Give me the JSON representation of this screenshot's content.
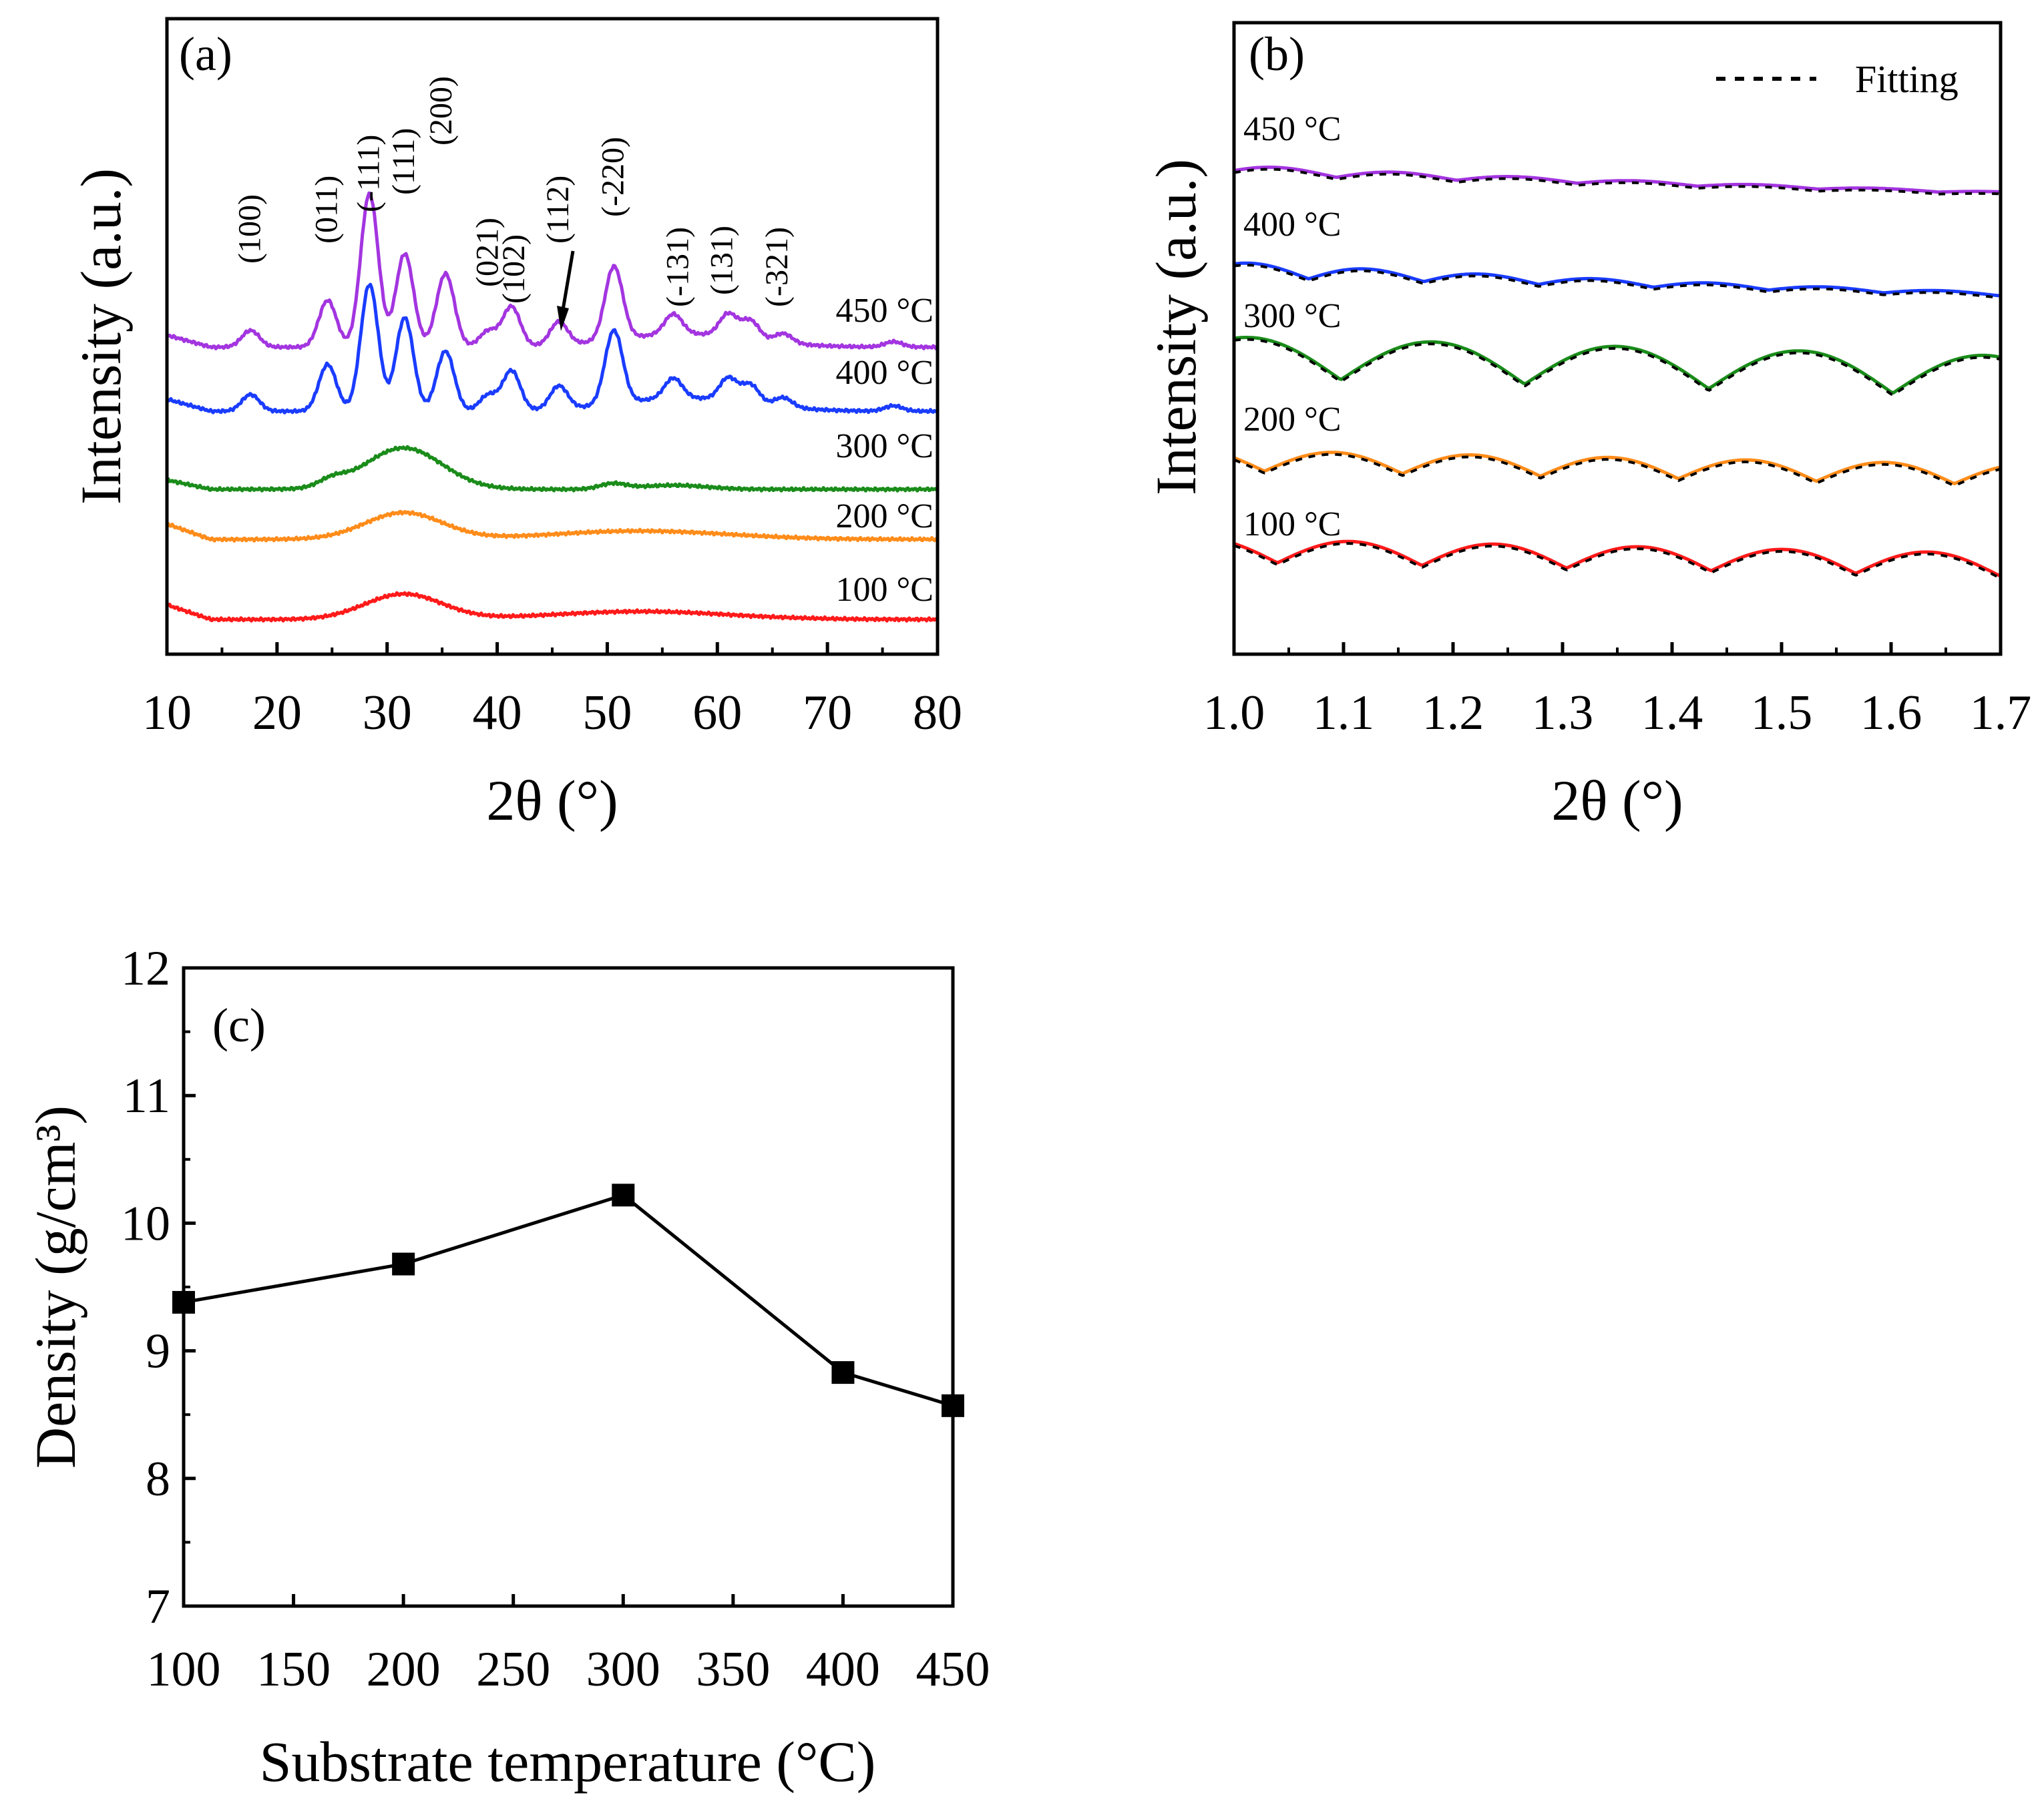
{
  "chart_data": [
    {
      "id": "a",
      "type": "line",
      "panel_tag": "(a)",
      "xlabel": "2θ (°)",
      "ylabel": "Intensity (a.u.)",
      "xlim": [
        10,
        80
      ],
      "x_ticks": [
        10,
        20,
        30,
        40,
        50,
        60,
        70,
        80
      ],
      "y_ticks_shown": false,
      "series": [
        {
          "name": "100 °C",
          "label": "100 °C",
          "color": "#ff1a1a"
        },
        {
          "name": "200 °C",
          "label": "200 °C",
          "color": "#ff8c1a"
        },
        {
          "name": "300 °C",
          "label": "300 °C",
          "color": "#1a8c1a"
        },
        {
          "name": "400 °C",
          "label": "400 °C",
          "color": "#1a3cff"
        },
        {
          "name": "450 °C",
          "label": "450 °C",
          "color": "#a335e0"
        }
      ],
      "peak_annotations": [
        {
          "label": "(100)",
          "x": 17.6
        },
        {
          "label": "(011)",
          "x": 24.6
        },
        {
          "label": "(-111)",
          "x": 28.4
        },
        {
          "label": "(111)",
          "x": 31.6
        },
        {
          "label": "(200)",
          "x": 35.0
        },
        {
          "label": "(021)",
          "x": 39.2
        },
        {
          "label": "(102)",
          "x": 41.6
        },
        {
          "label": "(112)",
          "x": 45.6
        },
        {
          "label": "(-220)",
          "x": 50.6
        },
        {
          "label": "(-131)",
          "x": 56.5
        },
        {
          "label": "(131)",
          "x": 60.5
        },
        {
          "label": "(-321)",
          "x": 65.5
        }
      ]
    },
    {
      "id": "b",
      "type": "line",
      "panel_tag": "(b)",
      "xlabel": "2θ (°)",
      "ylabel": "Intensity (a.u.)",
      "xlim": [
        1.0,
        1.7
      ],
      "x_ticks": [
        "1.0",
        "1.1",
        "1.2",
        "1.3",
        "1.4",
        "1.5",
        "1.6",
        "1.7"
      ],
      "y_ticks_shown": false,
      "legend": {
        "label": "Fitting",
        "style": "dashed",
        "placement": "top-right"
      },
      "series": [
        {
          "name": "100 °C",
          "label": "100 °C",
          "color": "#ff1a1a"
        },
        {
          "name": "200 °C",
          "label": "200 °C",
          "color": "#ff8c1a"
        },
        {
          "name": "300 °C",
          "label": "300 °C",
          "color": "#1a8c1a"
        },
        {
          "name": "400 °C",
          "label": "400 °C",
          "color": "#1a3cff"
        },
        {
          "name": "450 °C",
          "label": "450 °C",
          "color": "#a335e0"
        }
      ]
    },
    {
      "id": "c",
      "type": "line",
      "panel_tag": "(c)",
      "xlabel": "Substrate temperature (°C)",
      "ylabel": "Density (g/cm³)",
      "xlim": [
        100,
        450
      ],
      "ylim": [
        7,
        12
      ],
      "x_ticks": [
        100,
        150,
        200,
        250,
        300,
        350,
        400,
        450
      ],
      "y_ticks": [
        7,
        8,
        9,
        10,
        11,
        12
      ],
      "x": [
        100,
        200,
        300,
        400,
        450
      ],
      "y": [
        9.38,
        9.68,
        10.22,
        8.83,
        8.57
      ],
      "marker": "square",
      "color": "#000000"
    }
  ]
}
